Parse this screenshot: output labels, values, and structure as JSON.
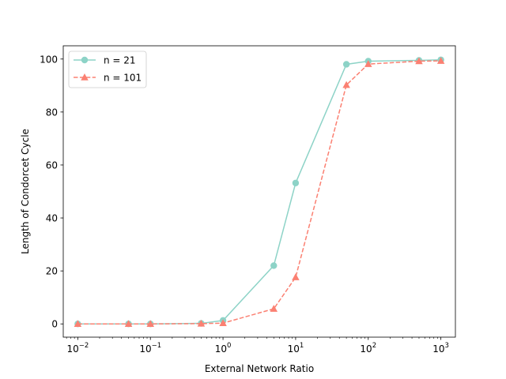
{
  "chart_data": {
    "type": "line",
    "title": "",
    "xlabel": "External Network Ratio",
    "ylabel": "Length of Condorcet Cycle",
    "xscale": "log",
    "xlim": [
      0.00631,
      1585
    ],
    "ylim": [
      -5,
      105
    ],
    "xticks": [
      {
        "value": 0.01,
        "base": "10",
        "exp": "−2"
      },
      {
        "value": 0.1,
        "base": "10",
        "exp": "−1"
      },
      {
        "value": 1,
        "base": "10",
        "exp": "0"
      },
      {
        "value": 10,
        "base": "10",
        "exp": "1"
      },
      {
        "value": 100,
        "base": "10",
        "exp": "2"
      },
      {
        "value": 1000,
        "base": "10",
        "exp": "3"
      }
    ],
    "yticks": [
      0,
      20,
      40,
      60,
      80,
      100
    ],
    "legend_position": "top-left",
    "grid": false,
    "x": [
      0.01,
      0.05,
      0.1,
      0.5,
      1,
      5,
      10,
      50,
      100,
      500,
      1000
    ],
    "series": [
      {
        "name": "n = 21",
        "color": "#8dd3c7",
        "linestyle": "solid",
        "marker": "circle",
        "values": [
          0,
          0,
          0,
          0.2,
          1.3,
          22,
          53.2,
          98,
          99.2,
          99.5,
          99.7
        ]
      },
      {
        "name": "n = 101",
        "color": "#fb8072",
        "linestyle": "dashed",
        "marker": "triangle",
        "values": [
          0,
          0,
          0,
          0.1,
          0.3,
          5.7,
          17.6,
          90.2,
          98.1,
          99.2,
          99.3
        ]
      }
    ]
  }
}
